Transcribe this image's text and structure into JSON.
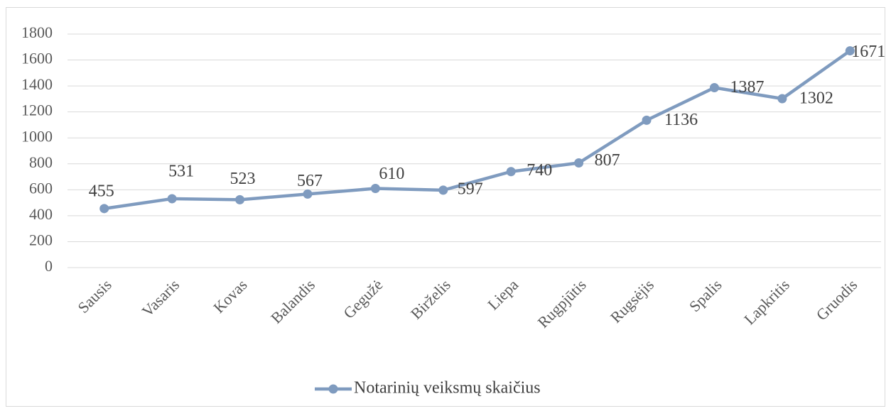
{
  "chart_data": {
    "type": "line",
    "categories": [
      "Sausis",
      "Vasaris",
      "Kovas",
      "Balandis",
      "Gegužė",
      "Birželis",
      "Liepa",
      "Rugpjūtis",
      "Rugsėjis",
      "Spalis",
      "Lapkritis",
      "Gruodis"
    ],
    "series": [
      {
        "name": "Notarinių veiksmų skaičius",
        "color": "#7f9bbf",
        "values": [
          455,
          531,
          523,
          567,
          610,
          597,
          740,
          807,
          1136,
          1387,
          1302,
          1671
        ]
      }
    ],
    "ylim": [
      0,
      1800
    ],
    "yticks": [
      0,
      200,
      400,
      600,
      800,
      1000,
      1200,
      1400,
      1600,
      1800
    ],
    "grid": true,
    "legend": "bottom"
  }
}
